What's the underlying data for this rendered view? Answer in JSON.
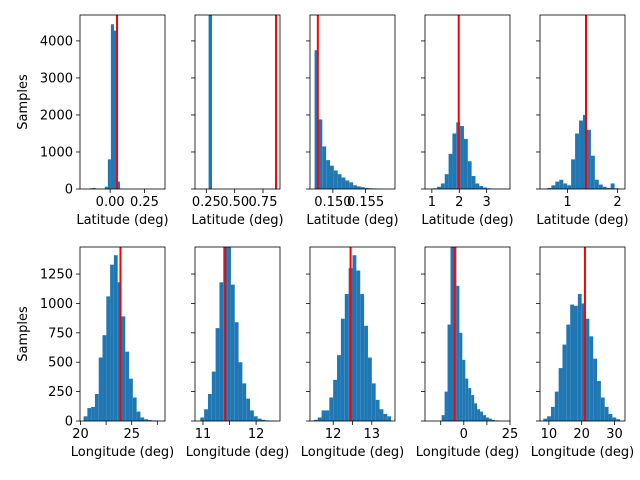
{
  "colors": {
    "bar": "#1f77b4",
    "ref_line": "#ff0000",
    "axes": "#000000"
  },
  "chart_data": [
    {
      "type": "bar",
      "row": 1,
      "col": 1,
      "xlabel": "Latitude (deg)",
      "ylabel": "Samples",
      "xlim": [
        -0.22,
        0.4
      ],
      "ylim": [
        0,
        4700
      ],
      "xticks": [
        0.0,
        0.25
      ],
      "xtick_labels": [
        "0.00",
        "0.25"
      ],
      "yticks": [
        0,
        1000,
        2000,
        3000,
        4000
      ],
      "ytick_labels": [
        "0",
        "1000",
        "2000",
        "3000",
        "4000"
      ],
      "show_yticklabels": true,
      "ref_line": 0.05,
      "bin_start": -0.15,
      "bin_width": 0.02222,
      "values": [
        20,
        30,
        10,
        5,
        0,
        60,
        800,
        4450,
        4280,
        200,
        10,
        0,
        0,
        5,
        0,
        0,
        0,
        0,
        0,
        0
      ]
    },
    {
      "type": "bar",
      "row": 1,
      "col": 2,
      "xlabel": "Latitude (deg)",
      "ylabel": "",
      "xlim": [
        0.15,
        0.9
      ],
      "ylim": [
        0,
        4700
      ],
      "xticks": [
        0.25,
        0.5,
        0.75
      ],
      "xtick_labels": [
        "0.25",
        "0.50",
        "0.75"
      ],
      "show_yticklabels": false,
      "ref_line": 0.865,
      "bin_start": 0.27,
      "bin_width": 0.03,
      "values": [
        4700,
        0,
        0,
        0,
        0,
        0,
        0,
        0,
        0,
        0,
        0,
        0,
        0,
        0,
        0,
        0,
        0,
        0,
        0,
        10
      ]
    },
    {
      "type": "bar",
      "row": 1,
      "col": 3,
      "xlabel": "Latitude (deg)",
      "ylabel": "",
      "xlim": [
        0.1465,
        0.1595
      ],
      "ylim": [
        0,
        4700
      ],
      "xticks": [
        0.15,
        0.155
      ],
      "xtick_labels": [
        "0.150",
        "0.155"
      ],
      "show_yticklabels": false,
      "ref_line": 0.1477,
      "bin_start": 0.1472,
      "bin_width": 0.00059,
      "values": [
        3750,
        1880,
        1150,
        780,
        630,
        500,
        400,
        310,
        230,
        180,
        100,
        70,
        50,
        30,
        20,
        15,
        10,
        5,
        3,
        2
      ]
    },
    {
      "type": "bar",
      "row": 1,
      "col": 4,
      "xlabel": "Latitude (deg)",
      "ylabel": "",
      "xlim": [
        0.75,
        3.85
      ],
      "ylim": [
        0,
        4700
      ],
      "xticks": [
        1,
        2,
        3
      ],
      "xtick_labels": [
        "1",
        "2",
        "3"
      ],
      "show_yticklabels": false,
      "ref_line": 1.98,
      "bin_start": 1.05,
      "bin_width": 0.14,
      "values": [
        20,
        60,
        150,
        400,
        950,
        1500,
        1800,
        1700,
        1350,
        750,
        350,
        150,
        80,
        40,
        20,
        10,
        5,
        5,
        3,
        2
      ]
    },
    {
      "type": "bar",
      "row": 1,
      "col": 5,
      "xlabel": "Latitude (deg)",
      "ylabel": "",
      "xlim": [
        0.45,
        2.15
      ],
      "ylim": [
        0,
        4700
      ],
      "xticks": [
        1,
        2
      ],
      "xtick_labels": [
        "1",
        "2"
      ],
      "show_yticklabels": false,
      "ref_line": 1.37,
      "bin_start": 0.52,
      "bin_width": 0.079,
      "values": [
        10,
        30,
        100,
        200,
        250,
        150,
        100,
        800,
        1500,
        1850,
        2000,
        1600,
        900,
        250,
        120,
        60,
        30,
        150,
        20,
        5
      ]
    },
    {
      "type": "bar",
      "row": 2,
      "col": 1,
      "xlabel": "Longitude (deg)",
      "ylabel": "Samples",
      "xlim": [
        19.95,
        28.25
      ],
      "ylim": [
        0,
        1480
      ],
      "xticks": [
        20,
        22.5,
        25,
        27.5
      ],
      "xtick_labels": [
        "20",
        "",
        "25",
        ""
      ],
      "yticks": [
        0,
        250,
        500,
        750,
        1000,
        1250
      ],
      "ytick_labels": [
        "0",
        "250",
        "500",
        "750",
        "1000",
        "1250"
      ],
      "show_yticklabels": true,
      "ref_line": 23.9,
      "bin_start": 20.3,
      "bin_width": 0.37,
      "values": [
        40,
        110,
        120,
        230,
        540,
        730,
        1060,
        1330,
        1410,
        1180,
        890,
        590,
        360,
        200,
        80,
        30,
        15,
        8,
        5,
        3
      ]
    },
    {
      "type": "bar",
      "row": 2,
      "col": 2,
      "xlabel": "Longitude (deg)",
      "ylabel": "",
      "xlim": [
        10.85,
        12.45
      ],
      "ylim": [
        0,
        1480
      ],
      "xticks": [
        11,
        11.5,
        12
      ],
      "xtick_labels": [
        "11",
        "",
        "12"
      ],
      "show_yticklabels": false,
      "ref_line": 11.42,
      "bin_start": 10.95,
      "bin_width": 0.072,
      "values": [
        30,
        100,
        230,
        420,
        790,
        1180,
        1480,
        1480,
        1160,
        840,
        500,
        320,
        190,
        90,
        40,
        20,
        10,
        5,
        3,
        2
      ]
    },
    {
      "type": "bar",
      "row": 2,
      "col": 3,
      "xlabel": "Longitude (deg)",
      "ylabel": "",
      "xlim": [
        11.4,
        13.6
      ],
      "ylim": [
        0,
        1480
      ],
      "xticks": [
        12,
        12.5,
        13
      ],
      "xtick_labels": [
        "12",
        "",
        "13"
      ],
      "show_yticklabels": false,
      "ref_line": 12.45,
      "bin_start": 11.5,
      "bin_width": 0.1,
      "values": [
        10,
        30,
        90,
        90,
        200,
        350,
        560,
        870,
        1080,
        1300,
        1410,
        1280,
        1080,
        810,
        540,
        320,
        180,
        100,
        60,
        40
      ]
    },
    {
      "type": "bar",
      "row": 2,
      "col": 4,
      "xlabel": "Longitude (deg)",
      "ylabel": "",
      "xlim": [
        -21,
        25
      ],
      "ylim": [
        0,
        1480
      ],
      "xticks": [
        -12.5,
        0,
        12.5,
        25
      ],
      "xtick_labels": [
        "",
        "0",
        "",
        "25"
      ],
      "show_yticklabels": false,
      "ref_line": -5.0,
      "bin_start": -12.0,
      "bin_width": 1.6,
      "values": [
        50,
        250,
        820,
        1480,
        1480,
        1150,
        750,
        520,
        360,
        280,
        220,
        150,
        100,
        80,
        50,
        30,
        20,
        10,
        5,
        3
      ]
    },
    {
      "type": "bar",
      "row": 2,
      "col": 5,
      "xlabel": "Longitude (deg)",
      "ylabel": "",
      "xlim": [
        7.3,
        33.2
      ],
      "ylim": [
        0,
        1480
      ],
      "xticks": [
        10,
        20,
        30
      ],
      "xtick_labels": [
        "10",
        "20",
        "30"
      ],
      "show_yticklabels": false,
      "ref_line": 21.0,
      "bin_start": 8.3,
      "bin_width": 1.17,
      "values": [
        20,
        40,
        120,
        250,
        450,
        650,
        820,
        990,
        980,
        1080,
        1000,
        870,
        720,
        530,
        340,
        200,
        120,
        60,
        30,
        15
      ]
    }
  ]
}
